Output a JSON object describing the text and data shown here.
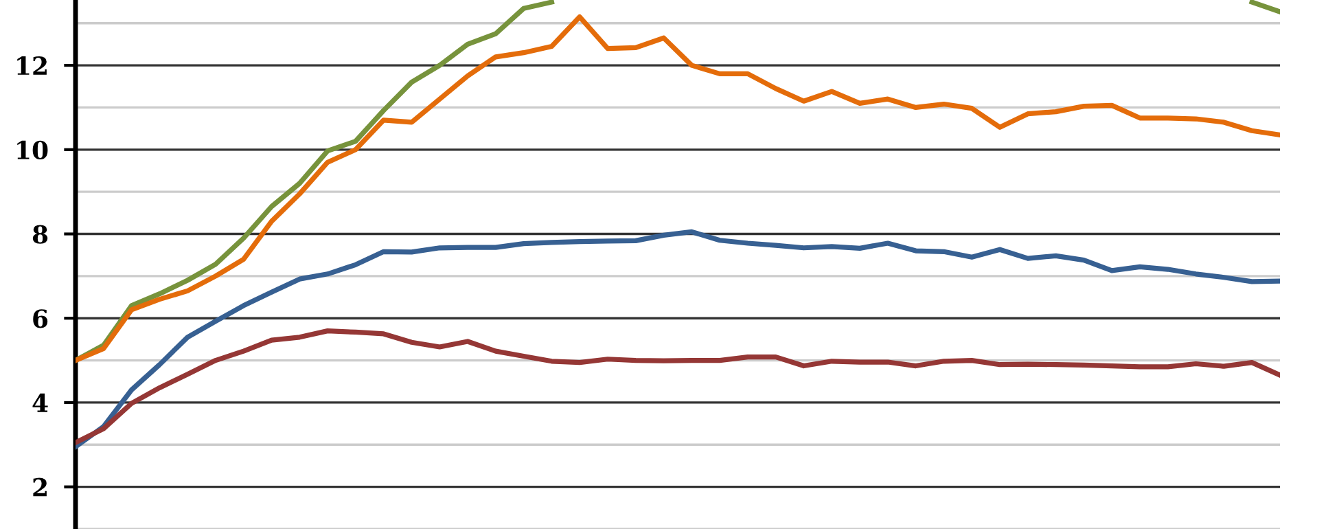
{
  "chart_data": {
    "type": "line",
    "categories": [
      null,
      null,
      null,
      null,
      null,
      null,
      null,
      null,
      null,
      null,
      null,
      null,
      null,
      null,
      null,
      null,
      null,
      null,
      null,
      null,
      null,
      null,
      null,
      null,
      null,
      null,
      null,
      null,
      null,
      null,
      null,
      null,
      null,
      null,
      null,
      null,
      null,
      null,
      null,
      null,
      null,
      null,
      null,
      null
    ],
    "series": [
      {
        "color": "#77933c",
        "values": [
          5.0,
          5.36,
          6.3,
          6.58,
          6.9,
          7.28,
          7.9,
          8.65,
          9.2,
          9.97,
          10.2,
          10.93,
          11.6,
          12.0,
          12.5,
          12.75,
          13.35,
          13.5,
          null,
          null,
          null,
          null,
          null,
          null,
          null,
          null,
          null,
          null,
          null,
          null,
          null,
          null,
          null,
          null,
          null,
          null,
          null,
          null,
          null,
          null,
          null,
          null,
          13.5,
          13.27
        ]
      },
      {
        "color": "#e46c0a",
        "values": [
          5.0,
          5.28,
          6.2,
          6.45,
          6.65,
          7.0,
          7.4,
          8.3,
          8.95,
          9.7,
          10.0,
          10.7,
          10.65,
          11.2,
          11.75,
          12.2,
          12.3,
          12.45,
          13.15,
          12.4,
          12.42,
          12.65,
          12.0,
          11.8,
          11.8,
          11.45,
          11.15,
          11.38,
          11.1,
          11.2,
          11.0,
          11.08,
          10.98,
          10.53,
          10.85,
          10.9,
          11.03,
          11.05,
          10.75,
          10.75,
          10.73,
          10.65,
          10.45,
          10.35
        ]
      },
      {
        "color": "#376092",
        "values": [
          2.95,
          3.43,
          4.3,
          4.9,
          5.55,
          5.93,
          6.3,
          6.62,
          6.93,
          7.05,
          7.27,
          7.58,
          7.57,
          7.67,
          7.68,
          7.68,
          7.77,
          7.8,
          7.82,
          7.83,
          7.84,
          7.97,
          8.05,
          7.85,
          7.78,
          7.73,
          7.67,
          7.7,
          7.66,
          7.78,
          7.6,
          7.58,
          7.45,
          7.63,
          7.42,
          7.48,
          7.38,
          7.13,
          7.22,
          7.16,
          7.05,
          6.97,
          6.87,
          6.88
        ]
      },
      {
        "color": "#953735",
        "values": [
          3.05,
          3.38,
          3.98,
          4.35,
          4.67,
          5.0,
          5.22,
          5.48,
          5.55,
          5.7,
          5.67,
          5.63,
          5.43,
          5.32,
          5.45,
          5.22,
          5.1,
          4.98,
          4.95,
          5.03,
          5.0,
          4.99,
          5.0,
          5.0,
          5.08,
          5.08,
          4.87,
          4.98,
          4.96,
          4.96,
          4.87,
          4.98,
          5.0,
          4.9,
          4.91,
          4.9,
          4.89,
          4.87,
          4.85,
          4.85,
          4.92,
          4.86,
          4.95,
          4.65
        ]
      }
    ],
    "ylim": [
      1,
      13.55
    ],
    "yticks": [
      {
        "value": 1,
        "label": null
      },
      2,
      {
        "value": 3,
        "label": null
      },
      4,
      {
        "value": 5,
        "label": null
      },
      6,
      {
        "value": 7,
        "label": null
      },
      8,
      {
        "value": 9,
        "label": null
      },
      10,
      {
        "value": 11,
        "label": null
      },
      12,
      {
        "value": 13,
        "label": null
      }
    ],
    "grid": "y",
    "tick_labels": "y",
    "marker": "none",
    "line_style": "solid"
  }
}
